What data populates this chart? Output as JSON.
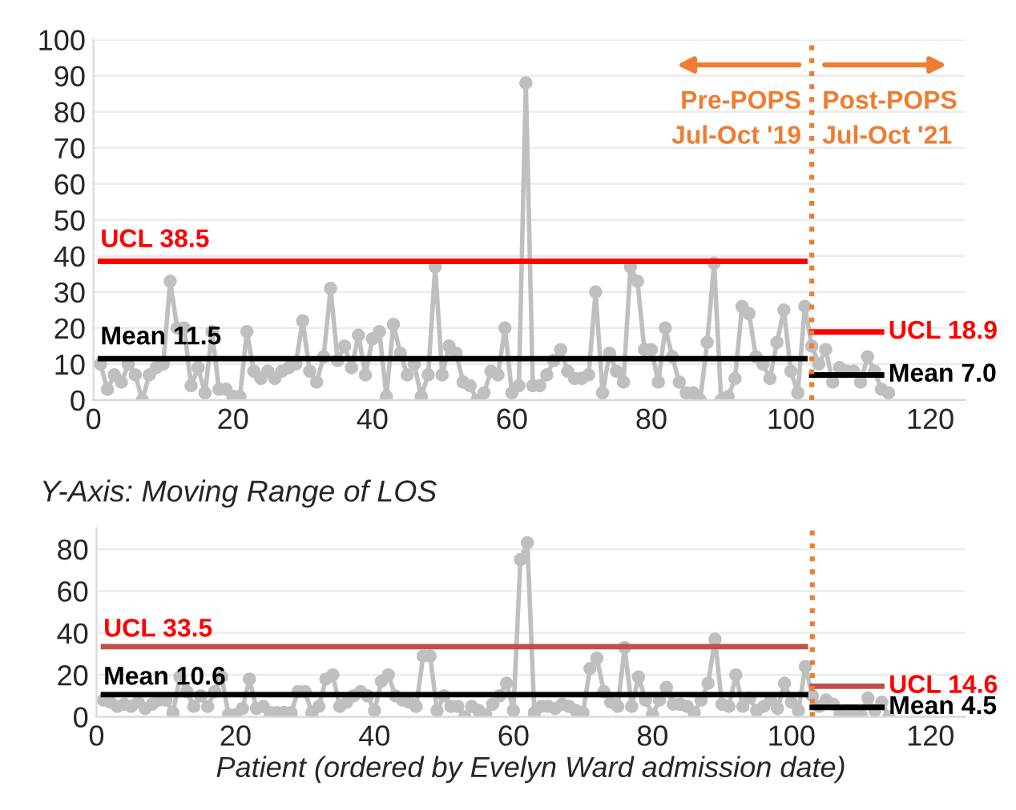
{
  "chart_data": [
    {
      "type": "line",
      "x": [
        1,
        2,
        3,
        4,
        5,
        6,
        7,
        8,
        9,
        10,
        11,
        12,
        13,
        14,
        15,
        16,
        17,
        18,
        19,
        20,
        21,
        22,
        23,
        24,
        25,
        26,
        27,
        28,
        29,
        30,
        31,
        32,
        33,
        34,
        35,
        36,
        37,
        38,
        39,
        40,
        41,
        42,
        43,
        44,
        45,
        46,
        47,
        48,
        49,
        50,
        51,
        52,
        53,
        54,
        55,
        56,
        57,
        58,
        59,
        60,
        61,
        62,
        63,
        64,
        65,
        66,
        67,
        68,
        69,
        70,
        71,
        72,
        73,
        74,
        75,
        76,
        77,
        78,
        79,
        80,
        81,
        82,
        83,
        84,
        85,
        86,
        87,
        88,
        89,
        90,
        91,
        92,
        93,
        94,
        95,
        96,
        97,
        98,
        99,
        100,
        101,
        102,
        103,
        104,
        105,
        106,
        107,
        108,
        109,
        110,
        111,
        112,
        113,
        114
      ],
      "series": [
        {
          "color": "#bfbfbf",
          "marker": "circle",
          "values": [
            10,
            3,
            7,
            5,
            10,
            7,
            0,
            7,
            9,
            10,
            33,
            20,
            20,
            4,
            9,
            2,
            19,
            3,
            3,
            1,
            1,
            19,
            8,
            6,
            8,
            6,
            8,
            9,
            10,
            22,
            8,
            5,
            12,
            31,
            11,
            15,
            9,
            18,
            7,
            17,
            19,
            1,
            21,
            13,
            7,
            10,
            1,
            7,
            37,
            7,
            15,
            13,
            5,
            4,
            0,
            2,
            8,
            7,
            20,
            2,
            4,
            88,
            4,
            4,
            7,
            11,
            14,
            8,
            6,
            6,
            7,
            30,
            2,
            13,
            8,
            5,
            37,
            33,
            14,
            14,
            5,
            20,
            12,
            5,
            2,
            2,
            0,
            16,
            38,
            0,
            1,
            6,
            26,
            24,
            12,
            10,
            6,
            16,
            25,
            8,
            2,
            26,
            15,
            10,
            14,
            5,
            9,
            8,
            8,
            5,
            12,
            8,
            3,
            2
          ]
        },
        {
          "name": "UCL 38.5",
          "color": "#ff0000",
          "marker": "none",
          "x": [
            1,
            102
          ],
          "values": [
            38.5,
            38.5
          ]
        },
        {
          "name": "Mean 11.5",
          "color": "#000000",
          "marker": "none",
          "x": [
            1,
            102
          ],
          "values": [
            11.5,
            11.5
          ]
        },
        {
          "name": "UCL 18.9",
          "color": "#ff0000",
          "marker": "none",
          "x": [
            103,
            113
          ],
          "values": [
            18.9,
            18.9
          ]
        },
        {
          "name": "Mean 7.0",
          "color": "#000000",
          "marker": "none",
          "x": [
            103,
            113
          ],
          "values": [
            7.0,
            7.0
          ]
        }
      ],
      "xlim": [
        0,
        125
      ],
      "xticks": [
        0,
        20,
        40,
        60,
        80,
        100,
        120
      ],
      "ylim": [
        0,
        100
      ],
      "yticks": [
        0,
        10,
        20,
        30,
        40,
        50,
        60,
        70,
        80,
        90,
        100
      ],
      "grid": "y",
      "legend": false,
      "ref_lines": [
        {
          "axis": "x",
          "value": 103,
          "color": "#ed7d31",
          "line_style": "dotted"
        }
      ],
      "annotations": [
        "Pre-POPS\nJul-Oct '19",
        "Post-POPS\nJul-Oct '21"
      ]
    },
    {
      "type": "line",
      "title": "Y-Axis: Moving Range of LOS",
      "xlabel": "Patient (ordered by Evelyn Ward admission date)",
      "x": [
        1,
        2,
        3,
        4,
        5,
        6,
        7,
        8,
        9,
        10,
        11,
        12,
        13,
        14,
        15,
        16,
        17,
        18,
        19,
        20,
        21,
        22,
        23,
        24,
        25,
        26,
        27,
        28,
        29,
        30,
        31,
        32,
        33,
        34,
        35,
        36,
        37,
        38,
        39,
        40,
        41,
        42,
        43,
        44,
        45,
        46,
        47,
        48,
        49,
        50,
        51,
        52,
        53,
        54,
        55,
        56,
        57,
        58,
        59,
        60,
        61,
        62,
        63,
        64,
        65,
        66,
        67,
        68,
        69,
        70,
        71,
        72,
        73,
        74,
        75,
        76,
        77,
        78,
        79,
        80,
        81,
        82,
        83,
        84,
        85,
        86,
        87,
        88,
        89,
        90,
        91,
        92,
        93,
        94,
        95,
        96,
        97,
        98,
        99,
        100,
        101,
        102,
        103,
        104,
        105,
        106,
        107,
        108,
        109,
        110,
        111,
        112,
        113,
        114
      ],
      "series": [
        {
          "color": "#bfbfbf",
          "marker": "circle",
          "values": [
            8,
            7,
            5,
            6,
            5,
            7,
            4,
            6,
            8,
            8,
            2,
            19,
            12,
            5,
            10,
            5,
            12,
            19,
            1,
            1,
            4,
            18,
            4,
            5,
            2,
            2,
            2,
            2,
            12,
            12,
            2,
            5,
            18,
            20,
            5,
            7,
            10,
            12,
            10,
            3,
            17,
            20,
            10,
            8,
            7,
            5,
            29,
            29,
            3,
            10,
            5,
            5,
            0,
            5,
            3,
            1,
            6,
            10,
            16,
            3,
            75,
            83,
            2,
            5,
            5,
            4,
            6,
            5,
            3,
            2,
            23,
            28,
            12,
            7,
            5,
            33,
            5,
            19,
            8,
            1,
            8,
            14,
            6,
            6,
            5,
            2,
            8,
            16,
            37,
            6,
            5,
            20,
            5,
            9,
            3,
            5,
            8,
            4,
            16,
            7,
            3,
            24,
            10,
            5,
            8,
            6,
            2,
            3,
            3,
            1,
            9,
            3,
            7,
            0
          ]
        },
        {
          "name": "UCL 33.5",
          "color": "#c0504d",
          "marker": "none",
          "x": [
            1,
            102
          ],
          "values": [
            33.5,
            33.5
          ]
        },
        {
          "name": "Mean 10.6",
          "color": "#000000",
          "marker": "none",
          "x": [
            1,
            102
          ],
          "values": [
            10.6,
            10.6
          ]
        },
        {
          "name": "UCL 14.6",
          "color": "#c0504d",
          "marker": "none",
          "x": [
            103,
            113
          ],
          "values": [
            14.6,
            14.6
          ]
        },
        {
          "name": "Mean 4.5",
          "color": "#000000",
          "marker": "none",
          "x": [
            103,
            113
          ],
          "values": [
            4.5,
            4.5
          ]
        }
      ],
      "xlim": [
        0,
        125
      ],
      "xticks": [
        0,
        20,
        40,
        60,
        80,
        100,
        120
      ],
      "ylim": [
        0,
        90
      ],
      "yticks": [
        0,
        20,
        40,
        60,
        80
      ],
      "grid": "y",
      "legend": false,
      "ref_lines": [
        {
          "axis": "x",
          "value": 103,
          "color": "#ed7d31",
          "line_style": "dotted"
        }
      ]
    }
  ]
}
